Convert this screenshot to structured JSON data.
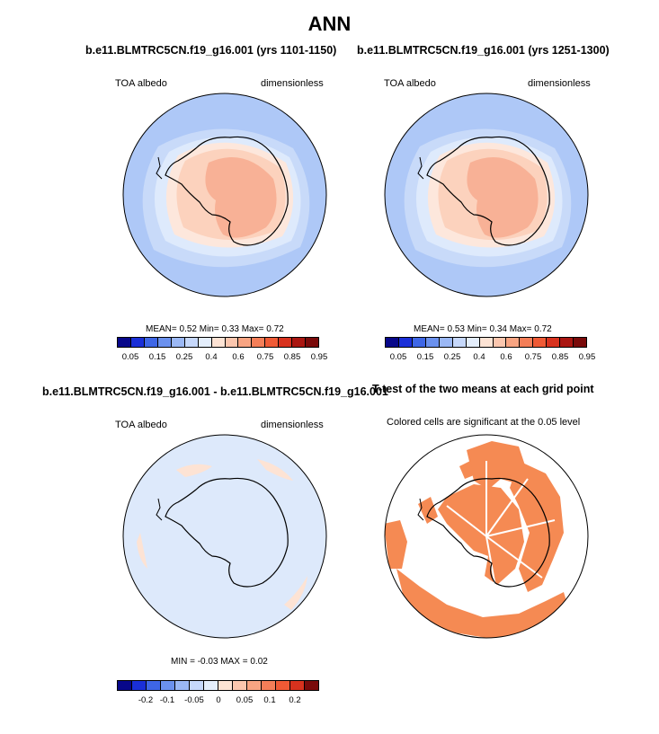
{
  "title": "ANN",
  "panels": {
    "p1": {
      "title": "b.e11.BLMTRC5CN.f19_g16.001 (yrs 1101-1150)",
      "left_label": "TOA albedo",
      "right_label": "dimensionless",
      "stats": "MEAN=   0.52  Min=   0.33  Max=   0.72"
    },
    "p2": {
      "title": "b.e11.BLMTRC5CN.f19_g16.001 (yrs 1251-1300)",
      "left_label": "TOA albedo",
      "right_label": "dimensionless",
      "stats": "MEAN=   0.53  Min=   0.34  Max=   0.72"
    },
    "p3": {
      "title": "b.e11.BLMTRC5CN.f19_g16.001 - b.e11.BLMTRC5CN.f19_g16.001",
      "left_label": "TOA albedo",
      "right_label": "dimensionless",
      "stats": "MIN =  -0.03 MAX =   0.02"
    },
    "p4": {
      "title": "T-test of the two means at each grid point",
      "label": "Colored cells are significant at the 0.05 level"
    }
  },
  "colorbar_abs": {
    "colors": [
      "#08088a",
      "#1a2fd8",
      "#3e66e6",
      "#6b91ee",
      "#9bb8f5",
      "#c6d8fb",
      "#e4eefc",
      "#fde3d4",
      "#fbc6ae",
      "#f8a482",
      "#f47e58",
      "#ef5a35",
      "#d8321e",
      "#aa1611",
      "#7a0a0a"
    ],
    "ticks": [
      "0.05",
      "0.15",
      "0.25",
      "0.4",
      "0.6",
      "0.75",
      "0.85",
      "0.95"
    ]
  },
  "colorbar_diff": {
    "colors": [
      "#08088a",
      "#1a2fd8",
      "#3e66e6",
      "#6b91ee",
      "#9bb8f5",
      "#c6d8fb",
      "#e4eefc",
      "#fde3d4",
      "#fbc6ae",
      "#f8a482",
      "#f47e58",
      "#ef5a35",
      "#d8321e",
      "#7a0a0a"
    ],
    "ticks": [
      "-0.2",
      "-0.1",
      "-0.05",
      "0",
      "0.05",
      "0.1",
      "0.2"
    ]
  }
}
